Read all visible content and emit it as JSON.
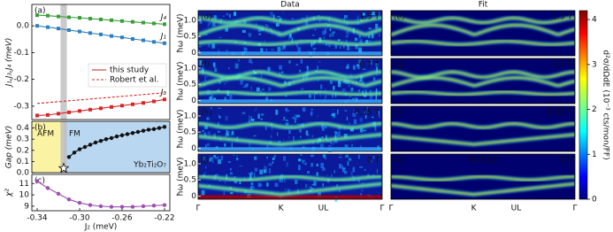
{
  "chart_data": [
    {
      "type": "line",
      "panel_label": "(a)",
      "ylabel": "J₁,J₃,J₄ (meV)",
      "x": [
        -0.34,
        -0.33,
        -0.32,
        -0.31,
        -0.3,
        -0.29,
        -0.28,
        -0.27,
        -0.26,
        -0.25,
        -0.24,
        -0.23,
        -0.22
      ],
      "xlim": [
        -0.345,
        -0.215
      ],
      "ylim": [
        -0.35,
        0.08
      ],
      "yticks": [
        -0.3,
        -0.2,
        -0.1,
        {
          "value": 0,
          "label": "0.0"
        }
      ],
      "band": [
        -0.318,
        -0.312
      ],
      "series": [
        {
          "name": "J₄",
          "color": "#3a9d3a",
          "marker": "square",
          "values": [
            0.04,
            0.038,
            0.035,
            0.032,
            0.03,
            0.027,
            0.024,
            0.021,
            0.018,
            0.015,
            0.012,
            0.009,
            0.006
          ]
        },
        {
          "name": "J₁",
          "color": "#2e7fbf",
          "marker": "square",
          "values": [
            0.0,
            -0.005,
            -0.01,
            -0.016,
            -0.021,
            -0.027,
            -0.032,
            -0.038,
            -0.043,
            -0.049,
            -0.054,
            -0.06,
            -0.065
          ]
        },
        {
          "name": "J₃",
          "color": "#d62728",
          "marker": "square",
          "values": [
            -0.335,
            -0.333,
            -0.328,
            -0.323,
            -0.318,
            -0.313,
            -0.308,
            -0.303,
            -0.298,
            -0.293,
            -0.288,
            -0.282,
            -0.275
          ]
        },
        {
          "color": "#d62728",
          "dash": true,
          "x": [
            -0.34,
            -0.22
          ],
          "values": [
            -0.29,
            -0.25
          ]
        }
      ],
      "legend_loc": "center right",
      "legend": [
        {
          "label": "this study",
          "color": "#c0392b",
          "dash": false
        },
        {
          "label": "Robert et al.",
          "color": "#c0392b",
          "dash": true
        }
      ]
    },
    {
      "type": "line",
      "panel_label": "(b)",
      "ylabel": "Gap (meV)",
      "x": [
        -0.31,
        -0.305,
        -0.3,
        -0.295,
        -0.29,
        -0.285,
        -0.28,
        -0.275,
        -0.27,
        -0.265,
        -0.26,
        -0.255,
        -0.25,
        -0.245,
        -0.24,
        -0.235,
        -0.23,
        -0.225,
        -0.22
      ],
      "xlim": [
        -0.345,
        -0.215
      ],
      "ylim": [
        0,
        0.46
      ],
      "yticks": [
        {
          "value": 0,
          "label": "0.0"
        },
        0.1,
        0.2,
        0.3,
        0.4
      ],
      "band": [
        -0.318,
        -0.312
      ],
      "regions": [
        {
          "label": "AFM",
          "x": [
            -0.345,
            -0.315
          ],
          "color": "#fbf3a4"
        },
        {
          "label": "FM",
          "x": [
            -0.315,
            -0.215
          ],
          "color": "#b9d7f1"
        }
      ],
      "series": [
        {
          "color": "#111111",
          "marker": "circle",
          "values": [
            0.14,
            0.18,
            0.21,
            0.23,
            0.25,
            0.27,
            0.285,
            0.3,
            0.31,
            0.325,
            0.335,
            0.345,
            0.355,
            0.365,
            0.375,
            0.385,
            0.39,
            0.4,
            0.41
          ]
        }
      ],
      "star": {
        "x": -0.315,
        "y": 0.04
      },
      "annotation": "Yb₂Ti₂O₇"
    },
    {
      "type": "line",
      "panel_label": "(c)",
      "ylabel": "χ²",
      "xlabel": "J₂ (meV)",
      "x": [
        -0.34,
        -0.33,
        -0.32,
        -0.31,
        -0.3,
        -0.29,
        -0.28,
        -0.27,
        -0.26,
        -0.25,
        -0.24,
        -0.23,
        -0.22
      ],
      "xlim": [
        -0.345,
        -0.215
      ],
      "ylim": [
        8.6,
        11.8
      ],
      "yticks": [
        9,
        10,
        11
      ],
      "xticks": [
        -0.34,
        {
          "value": -0.3,
          "label": "-0.30"
        },
        -0.26,
        -0.22
      ],
      "series": [
        {
          "color": "#9b4fb0",
          "marker": "circle",
          "values": [
            11.2,
            10.6,
            10.1,
            9.6,
            9.3,
            9.1,
            9.0,
            8.95,
            8.95,
            8.95,
            9.0,
            9.05,
            9.1
          ]
        }
      ]
    }
  ],
  "heatmaps": {
    "columns": [
      "Data",
      "Fit"
    ],
    "ylabel": "ħω (meV)",
    "ylim": [
      -0.1,
      1.3
    ],
    "yticks": [
      0,
      0.5,
      {
        "value": 1,
        "label": "1.0"
      }
    ],
    "xticks": [
      "Γ",
      "K",
      "UL",
      "Γ"
    ],
    "rows": [
      {
        "field": "1.5 T",
        "labels": [
          "(d)",
          "(e)"
        ]
      },
      {
        "field": "0.7 T",
        "labels": [
          "(f)",
          "(g)"
        ]
      },
      {
        "field": "0.35 T",
        "labels": [
          "(h)",
          "(i)"
        ]
      },
      {
        "field": "0 T",
        "labels": [
          "(j)",
          "(k)"
        ]
      }
    ],
    "colorbar": {
      "lim": [
        0,
        4.2
      ],
      "ticks": [
        0,
        1,
        2,
        3,
        4
      ],
      "label": "d²σ/dΩdE (10⁻³ cts/mon/FF)"
    }
  }
}
